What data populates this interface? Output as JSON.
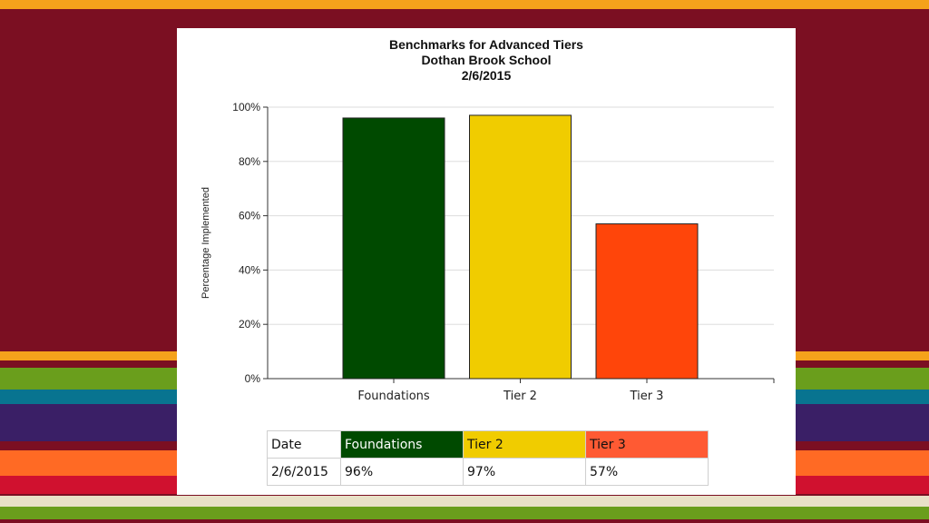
{
  "colors": {
    "background": "#7b0f22",
    "foundations": "#004a00",
    "tier2": "#f0cc00",
    "tier3": "#ff450a",
    "tier3_header": "#ff5a33"
  },
  "chart_data": {
    "type": "bar",
    "title": "Benchmarks for Advanced Tiers",
    "subtitle_lines": [
      "Dothan Brook School",
      "2/6/2015"
    ],
    "categories": [
      "Foundations",
      "Tier 2",
      "Tier 3"
    ],
    "values": [
      96,
      97,
      57
    ],
    "bar_colors": [
      "#004a00",
      "#f0cc00",
      "#ff450a"
    ],
    "xlabel": "",
    "ylabel": "Percentage Implemented",
    "ylim": [
      0,
      100
    ],
    "yticks": [
      "0%",
      "20%",
      "40%",
      "60%",
      "80%",
      "100%"
    ],
    "grid": true,
    "legend": "none"
  },
  "table": {
    "headers": [
      "Date",
      "Foundations",
      "Tier 2",
      "Tier 3"
    ],
    "rows": [
      [
        "2/6/2015",
        "96%",
        "97%",
        "57%"
      ]
    ]
  }
}
